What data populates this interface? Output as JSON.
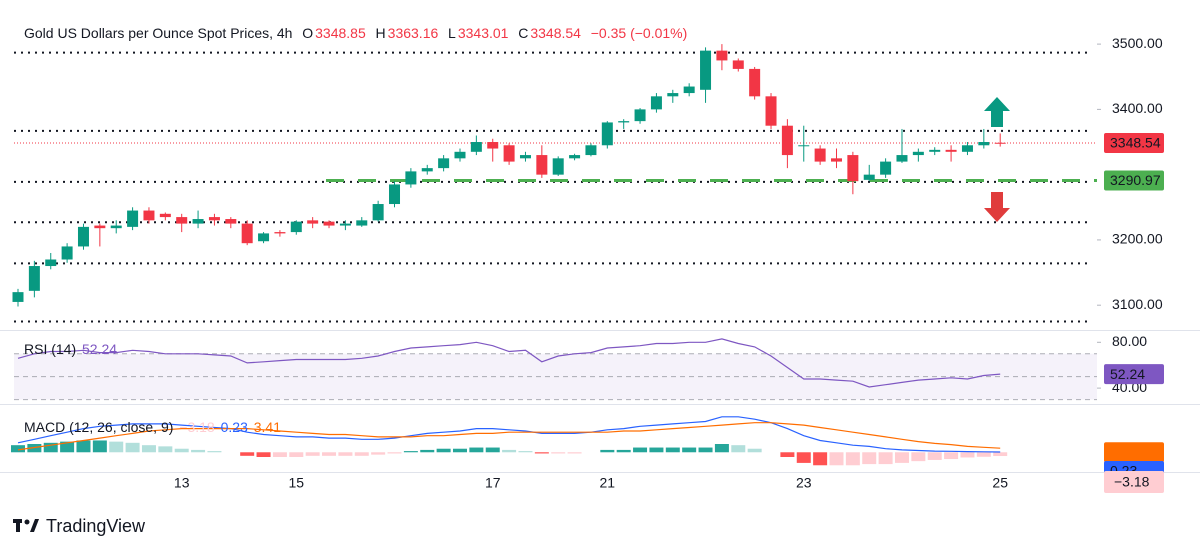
{
  "chart_data": [
    {
      "type": "candlestick",
      "title": "Gold US Dollars per Ounce Spot Prices, 4h",
      "ohlc_letters": [
        "O",
        "H",
        "L",
        "C"
      ],
      "change_label": "−0.35 (−0.01%)",
      "categories": [
        null,
        null,
        null,
        null,
        null,
        null,
        null,
        null,
        null,
        null,
        "13",
        null,
        null,
        null,
        null,
        null,
        null,
        "15",
        null,
        null,
        null,
        null,
        null,
        null,
        null,
        null,
        null,
        null,
        null,
        "17",
        null,
        null,
        null,
        null,
        null,
        null,
        "21",
        null,
        null,
        null,
        null,
        null,
        null,
        null,
        null,
        null,
        null,
        null,
        "23",
        null,
        null,
        null,
        null,
        null,
        null,
        null,
        null,
        null,
        null,
        null,
        "25"
      ],
      "open": [
        3105,
        3122,
        3160,
        3170,
        3190,
        3222,
        3218,
        3220,
        3245,
        3240,
        3235,
        3225,
        3235,
        3232,
        3225,
        3198,
        3212,
        3212,
        3230,
        3228,
        3222,
        3222,
        3230,
        3255,
        3285,
        3305,
        3310,
        3325,
        3335,
        3350,
        3345,
        3325,
        3330,
        3300,
        3325,
        3330,
        3345,
        3380,
        3382,
        3400,
        3420,
        3425,
        3430,
        3490,
        3475,
        3462,
        3420,
        3375,
        3345,
        3340,
        3325,
        3330,
        3292,
        3300,
        3320,
        3330,
        3335,
        3338,
        3335,
        3345,
        3348.85
      ],
      "high": [
        3125,
        3168,
        3180,
        3195,
        3225,
        3225,
        3230,
        3250,
        3250,
        3242,
        3240,
        3245,
        3240,
        3235,
        3230,
        3212,
        3215,
        3230,
        3235,
        3230,
        3230,
        3235,
        3260,
        3290,
        3310,
        3315,
        3330,
        3340,
        3360,
        3355,
        3348,
        3335,
        3345,
        3328,
        3332,
        3348,
        3382,
        3385,
        3402,
        3425,
        3430,
        3440,
        3495,
        3500,
        3478,
        3465,
        3425,
        3385,
        3375,
        3345,
        3340,
        3335,
        3315,
        3325,
        3370,
        3340,
        3342,
        3345,
        3350,
        3370,
        3363.16
      ],
      "low": [
        3098,
        3112,
        3155,
        3165,
        3185,
        3190,
        3210,
        3215,
        3225,
        3230,
        3212,
        3218,
        3222,
        3218,
        3192,
        3195,
        3205,
        3208,
        3218,
        3218,
        3215,
        3220,
        3228,
        3250,
        3280,
        3300,
        3305,
        3320,
        3330,
        3320,
        3315,
        3320,
        3295,
        3298,
        3322,
        3328,
        3340,
        3370,
        3378,
        3395,
        3410,
        3420,
        3410,
        3460,
        3458,
        3415,
        3370,
        3310,
        3320,
        3315,
        3310,
        3270,
        3290,
        3295,
        3318,
        3320,
        3330,
        3320,
        3330,
        3340,
        3343.01
      ],
      "close": [
        3120,
        3160,
        3170,
        3190,
        3220,
        3218,
        3222,
        3245,
        3230,
        3235,
        3225,
        3232,
        3230,
        3225,
        3195,
        3210,
        3210,
        3228,
        3225,
        3222,
        3225,
        3230,
        3255,
        3285,
        3305,
        3310,
        3325,
        3335,
        3350,
        3340,
        3320,
        3330,
        3300,
        3325,
        3330,
        3345,
        3380,
        3382,
        3400,
        3420,
        3425,
        3435,
        3490,
        3475,
        3462,
        3420,
        3375,
        3330,
        3345,
        3320,
        3320,
        3290,
        3300,
        3320,
        3330,
        3335,
        3338,
        3335,
        3345,
        3350,
        3348.54
      ],
      "up_color": "#089981",
      "down_color": "#f23645",
      "ylim": [
        3062,
        3540
      ],
      "yticks": [
        {
          "value": 3100,
          "label": "3100.00"
        },
        {
          "value": 3200,
          "label": "3200.00"
        },
        {
          "value": 3400,
          "label": "3400.00"
        },
        {
          "value": 3500,
          "label": "3500.00"
        }
      ],
      "levels": [
        3487,
        3367,
        3289,
        3227,
        3164,
        3075
      ],
      "support": 3290.97,
      "support_color": "#4caf50"
    },
    {
      "type": "line",
      "title": "RSI (14)",
      "color": "#7e57c2",
      "values": [
        66,
        70,
        72,
        72,
        73,
        71,
        71,
        73,
        72,
        70,
        70,
        70,
        69,
        68,
        62,
        63,
        64,
        65,
        65,
        65,
        65,
        66,
        68,
        72,
        75,
        76,
        77,
        78,
        80,
        77,
        72,
        73,
        63,
        68,
        70,
        71,
        75,
        76,
        77,
        79,
        79,
        80,
        80,
        83,
        79,
        76,
        68,
        58,
        48,
        48,
        47,
        46,
        41,
        43,
        45,
        47,
        48,
        49,
        48,
        51,
        52.24
      ],
      "ylim": [
        27,
        89
      ],
      "yticks": [
        {
          "value": 80,
          "label": "80.00"
        },
        {
          "value": 40,
          "label": "40.00"
        }
      ],
      "bands": [
        70,
        50,
        30
      ]
    },
    {
      "type": "macd",
      "title": "MACD (12, 26, close, 9)",
      "ylim": [
        -15,
        40
      ],
      "series": [
        {
          "type": "histogram",
          "colors": [
            "#26a69a",
            "#b2dfdb",
            "#ffcdd2",
            "#ff5252"
          ],
          "last_label": "−3.18",
          "values": [
            6,
            7,
            8,
            9,
            10,
            10,
            9,
            8,
            6,
            5,
            3,
            2,
            1,
            0,
            -3,
            -4,
            -4,
            -4,
            -3,
            -3,
            -3,
            -3,
            -2,
            -1,
            1,
            2,
            3,
            3,
            4,
            4,
            2,
            1,
            -1,
            -1,
            -1,
            0,
            2,
            2,
            4,
            4,
            4,
            4,
            4,
            7,
            6,
            3,
            0,
            -4,
            -9,
            -11,
            -11,
            -11,
            -10,
            -10,
            -9,
            -7.5,
            -6.5,
            -5.7,
            -4.4,
            -3.8,
            -3.18
          ]
        },
        {
          "type": "line",
          "color": "#2962ff",
          "values": [
            8,
            11,
            14,
            17,
            20,
            22,
            23,
            24,
            24,
            24,
            23,
            22,
            21,
            20,
            17,
            15,
            14,
            13,
            13,
            12,
            12,
            11,
            11,
            12,
            14,
            16,
            17,
            18,
            20,
            20,
            19,
            18,
            16,
            16,
            16,
            17,
            19,
            20,
            22,
            23,
            24,
            25,
            26,
            30,
            30,
            28,
            25,
            20,
            14,
            10,
            8,
            6,
            5,
            3,
            2,
            1.5,
            1,
            0.8,
            0.6,
            0.4,
            0.23
          ]
        },
        {
          "type": "line",
          "color": "#ff6d00",
          "values": [
            2,
            4,
            6,
            8,
            10,
            12,
            14,
            16,
            18,
            19,
            20,
            20,
            20,
            20,
            20,
            19,
            18,
            17,
            16,
            15,
            15,
            14,
            13,
            13,
            13,
            14,
            14,
            15,
            16,
            16,
            17,
            17,
            17,
            17,
            17,
            17,
            17,
            18,
            18,
            19,
            20,
            21,
            22,
            23,
            24,
            25,
            25,
            24,
            23,
            21,
            19,
            17,
            15,
            13,
            11,
            9,
            7.5,
            6.5,
            5,
            4.2,
            3.41
          ]
        }
      ]
    }
  ],
  "footer": "TradingView"
}
